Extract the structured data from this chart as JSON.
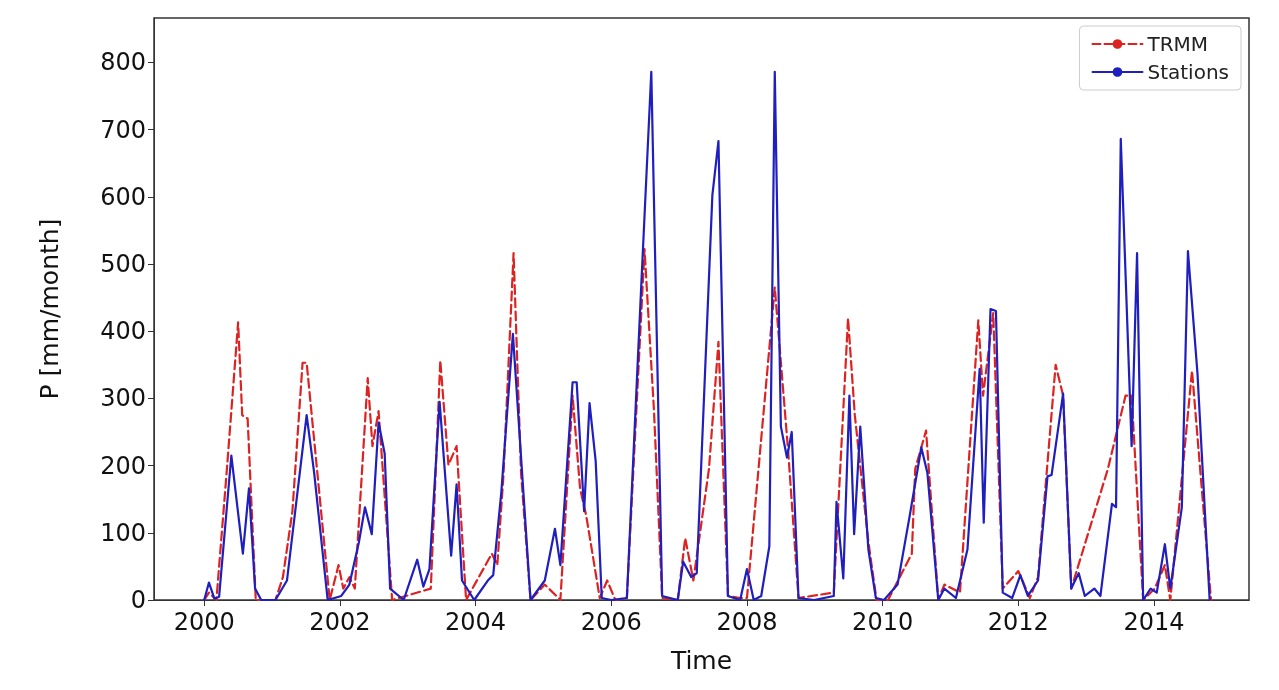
{
  "chart_data": {
    "type": "line",
    "xlabel": "Time",
    "ylabel": "P [mm/month]",
    "xlim": [
      1999.26,
      2015.4
    ],
    "ylim": [
      0,
      866
    ],
    "xticks": [
      2000,
      2002,
      2004,
      2006,
      2008,
      2010,
      2012,
      2014
    ],
    "yticks": [
      0,
      100,
      200,
      300,
      400,
      500,
      600,
      700,
      800
    ],
    "grid": false,
    "legend": "top right",
    "marker": "none",
    "series": [
      {
        "name": "TRMM",
        "color": "#dd2222",
        "line_style": "dashed",
        "x": [
          2000,
          2000.07,
          2000.18,
          2000.33,
          2000.5,
          2000.56,
          2000.64,
          2000.76,
          2001.05,
          2001.16,
          2001.3,
          2001.45,
          2001.51,
          2001.85,
          2001.98,
          2002.05,
          2002.14,
          2002.22,
          2002.41,
          2002.48,
          2002.57,
          2002.77,
          2003.34,
          2003.48,
          2003.6,
          2003.72,
          2003.86,
          2004.24,
          2004.32,
          2004.41,
          2004.56,
          2004.67,
          2004.81,
          2005.02,
          2005.25,
          2005.43,
          2005.54,
          2005.63,
          2005.83,
          2005.94,
          2006.06,
          2006.23,
          2006.49,
          2006.63,
          2006.75,
          2006.98,
          2007.09,
          2007.21,
          2007.44,
          2007.58,
          2007.72,
          2007.9,
          2008,
          2008.41,
          2008.61,
          2008.76,
          2009.28,
          2009.49,
          2009.59,
          2009.79,
          2009.91,
          2010.08,
          2010.43,
          2010.48,
          2010.64,
          2010.82,
          2010.91,
          2011.14,
          2011.41,
          2011.48,
          2011.63,
          2011.77,
          2012,
          2012.17,
          2012.29,
          2012.55,
          2012.66,
          2012.78,
          2013.32,
          2013.58,
          2013.67,
          2013.84,
          2014.01,
          2014.16,
          2014.24,
          2014.56,
          2014.84
        ],
        "values": [
          0,
          11,
          0,
          189,
          413,
          275,
          270,
          0,
          0,
          34,
          132,
          353,
          353,
          0,
          52,
          17,
          34,
          17,
          330,
          229,
          281,
          0,
          17,
          356,
          201,
          229,
          0,
          69,
          52,
          184,
          516,
          189,
          0,
          23,
          0,
          304,
          166,
          126,
          3,
          29,
          0,
          3,
          522,
          281,
          3,
          0,
          92,
          29,
          195,
          384,
          6,
          3,
          3,
          465,
          218,
          3,
          11,
          419,
          275,
          86,
          0,
          0,
          69,
          195,
          252,
          0,
          23,
          11,
          416,
          304,
          427,
          17,
          43,
          3,
          34,
          350,
          304,
          17,
          195,
          304,
          304,
          0,
          17,
          52,
          0,
          341,
          0
        ]
      },
      {
        "name": "Stations",
        "color": "#1f1fbf",
        "line_style": "solid",
        "x": [
          2000,
          2000.07,
          2000.15,
          2000.22,
          2000.4,
          2000.57,
          2000.66,
          2000.75,
          2000.84,
          2001.05,
          2001.22,
          2001.51,
          2001.62,
          2001.82,
          2002.02,
          2002.14,
          2002.28,
          2002.37,
          2002.47,
          2002.57,
          2002.66,
          2002.74,
          2002.94,
          2003.14,
          2003.23,
          2003.32,
          2003.47,
          2003.64,
          2003.72,
          2003.8,
          2003.98,
          2004.18,
          2004.26,
          2004.38,
          2004.55,
          2004.81,
          2005.02,
          2005.17,
          2005.25,
          2005.43,
          2005.49,
          2005.6,
          2005.68,
          2005.77,
          2005.86,
          2006,
          2006.23,
          2006.43,
          2006.59,
          2006.75,
          2006.98,
          2007.06,
          2007.18,
          2007.26,
          2007.49,
          2007.58,
          2007.72,
          2007.9,
          2008,
          2008.1,
          2008.21,
          2008.33,
          2008.41,
          2008.5,
          2008.59,
          2008.66,
          2008.76,
          2008.99,
          2009.28,
          2009.32,
          2009.42,
          2009.51,
          2009.58,
          2009.67,
          2009.79,
          2009.9,
          2010.02,
          2010.22,
          2010.4,
          2010.57,
          2010.66,
          2010.82,
          2010.91,
          2011.08,
          2011.25,
          2011.43,
          2011.49,
          2011.59,
          2011.67,
          2011.77,
          2011.91,
          2012.03,
          2012.14,
          2012.29,
          2012.43,
          2012.49,
          2012.66,
          2012.78,
          2012.89,
          2012.98,
          2013.12,
          2013.21,
          2013.38,
          2013.44,
          2013.51,
          2013.67,
          2013.75,
          2013.84,
          2013.95,
          2014.04,
          2014.16,
          2014.24,
          2014.41,
          2014.5,
          2014.64,
          2014.82
        ],
        "values": [
          0,
          26,
          2,
          5,
          215,
          69,
          166,
          17,
          0,
          0,
          29,
          275,
          190,
          0,
          6,
          23,
          86,
          138,
          98,
          264,
          218,
          17,
          0,
          60,
          20,
          46,
          295,
          66,
          172,
          29,
          0,
          29,
          37,
          161,
          396,
          0,
          29,
          106,
          52,
          324,
          324,
          132,
          293,
          207,
          3,
          0,
          3,
          442,
          786,
          6,
          0,
          57,
          34,
          40,
          602,
          683,
          6,
          0,
          46,
          0,
          6,
          80,
          786,
          258,
          212,
          250,
          3,
          0,
          6,
          146,
          32,
          304,
          98,
          258,
          75,
          3,
          0,
          23,
          126,
          227,
          189,
          0,
          17,
          3,
          75,
          344,
          115,
          433,
          430,
          11,
          3,
          37,
          6,
          29,
          184,
          186,
          307,
          17,
          40,
          6,
          17,
          6,
          143,
          138,
          686,
          229,
          516,
          0,
          17,
          11,
          83,
          17,
          138,
          519,
          338,
          0
        ]
      }
    ]
  }
}
